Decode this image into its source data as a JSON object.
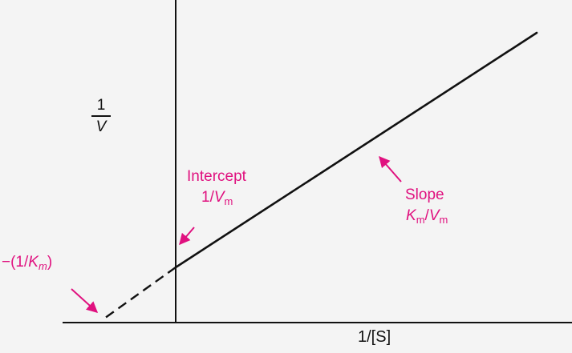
{
  "colors": {
    "background": "#f4f4f4",
    "axis": "#111111",
    "annotation": "#e0117f"
  },
  "diagram": {
    "y_axis_label": {
      "numerator": "1",
      "denominator": "V"
    },
    "x_axis_label": "1/[S]",
    "intercept": {
      "title": "Intercept",
      "value_prefix": "1/",
      "value_var": "V",
      "value_sub": "m"
    },
    "slope": {
      "title": "Slope",
      "num_var": "K",
      "num_sub": "m",
      "sep": "/",
      "den_var": "V",
      "den_sub": "m"
    },
    "x_intercept": {
      "prefix": "−(1/",
      "var": "K",
      "sub": "m",
      "suffix": ")"
    }
  }
}
